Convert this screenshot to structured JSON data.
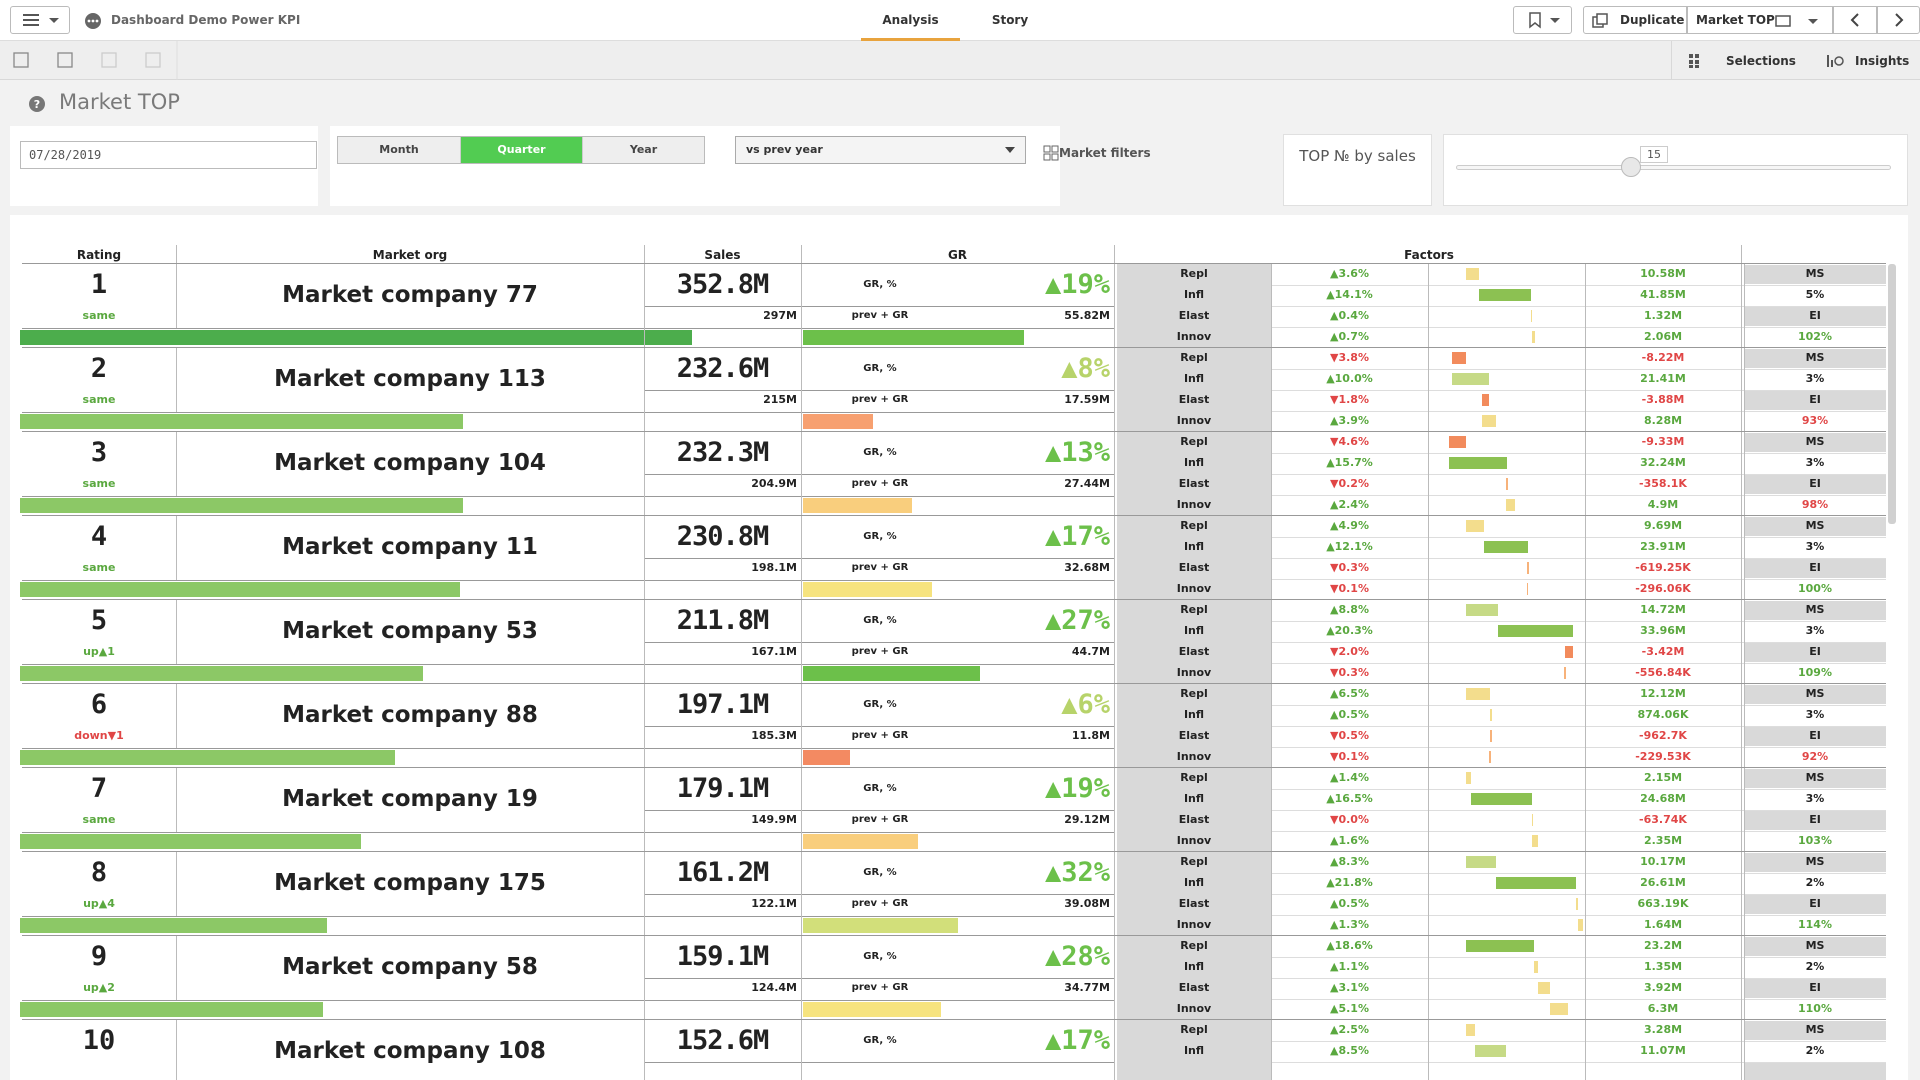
{
  "app": {
    "title": "Dashboard Demo Power KPI",
    "tabs": [
      "Analysis",
      "Story"
    ],
    "duplicate": "Duplicate",
    "sheet": "Market TOP"
  },
  "toolbar": {
    "selections": "Selections",
    "insights": "Insights"
  },
  "sheet": {
    "title": "Market TOP"
  },
  "filters": {
    "date": "07/28/2019",
    "periods": [
      "Month",
      "Quarter",
      "Year"
    ],
    "active_period": 1,
    "compare": "vs prev year",
    "market_filters": "Market filters",
    "top_label": "TOP № by sales",
    "top_value": "15"
  },
  "table": {
    "headers": {
      "rating": "Rating",
      "org": "Market org",
      "sales": "Sales",
      "gr": "GR",
      "factors": "Factors"
    },
    "gr_label": "GR, %",
    "prev_label": "prev + GR",
    "factor_names": [
      "Repl",
      "Infl",
      "Elast",
      "Innov"
    ],
    "ms_label": "MS",
    "ei_label": "EI",
    "rows": [
      {
        "rating": "1",
        "change": "same",
        "name": "Market company 77",
        "sales": "352.8M",
        "gr": "▲19%",
        "prev": "297M",
        "delta": "55.82M",
        "factors": [
          {
            "pct": "▲3.6%",
            "value": "10.58M"
          },
          {
            "pct": "▲14.1%",
            "value": "41.85M"
          },
          {
            "pct": "▲0.4%",
            "value": "1.32M"
          },
          {
            "pct": "▲0.7%",
            "value": "2.06M"
          }
        ],
        "ms": "5%",
        "ei": "102%"
      },
      {
        "rating": "2",
        "change": "same",
        "name": "Market company 113",
        "sales": "232.6M",
        "gr": "▲8%",
        "prev": "215M",
        "delta": "17.59M",
        "factors": [
          {
            "pct": "▼3.8%",
            "value": "-8.22M"
          },
          {
            "pct": "▲10.0%",
            "value": "21.41M"
          },
          {
            "pct": "▼1.8%",
            "value": "-3.88M"
          },
          {
            "pct": "▲3.9%",
            "value": "8.28M"
          }
        ],
        "ms": "3%",
        "ei": "93%"
      },
      {
        "rating": "3",
        "change": "same",
        "name": "Market company 104",
        "sales": "232.3M",
        "gr": "▲13%",
        "prev": "204.9M",
        "delta": "27.44M",
        "factors": [
          {
            "pct": "▼4.6%",
            "value": "-9.33M"
          },
          {
            "pct": "▲15.7%",
            "value": "32.24M"
          },
          {
            "pct": "▼0.2%",
            "value": "-358.1K"
          },
          {
            "pct": "▲2.4%",
            "value": "4.9M"
          }
        ],
        "ms": "3%",
        "ei": "98%"
      },
      {
        "rating": "4",
        "change": "same",
        "name": "Market company 11",
        "sales": "230.8M",
        "gr": "▲17%",
        "prev": "198.1M",
        "delta": "32.68M",
        "factors": [
          {
            "pct": "▲4.9%",
            "value": "9.69M"
          },
          {
            "pct": "▲12.1%",
            "value": "23.91M"
          },
          {
            "pct": "▼0.3%",
            "value": "-619.25K"
          },
          {
            "pct": "▼0.1%",
            "value": "-296.06K"
          }
        ],
        "ms": "3%",
        "ei": "100%"
      },
      {
        "rating": "5",
        "change": "up▲1",
        "name": "Market company 53",
        "sales": "211.8M",
        "gr": "▲27%",
        "prev": "167.1M",
        "delta": "44.7M",
        "factors": [
          {
            "pct": "▲8.8%",
            "value": "14.72M"
          },
          {
            "pct": "▲20.3%",
            "value": "33.96M"
          },
          {
            "pct": "▼2.0%",
            "value": "-3.42M"
          },
          {
            "pct": "▼0.3%",
            "value": "-556.84K"
          }
        ],
        "ms": "3%",
        "ei": "109%"
      },
      {
        "rating": "6",
        "change": "down▼1",
        "name": "Market company 88",
        "sales": "197.1M",
        "gr": "▲6%",
        "prev": "185.3M",
        "delta": "11.8M",
        "factors": [
          {
            "pct": "▲6.5%",
            "value": "12.12M"
          },
          {
            "pct": "▲0.5%",
            "value": "874.06K"
          },
          {
            "pct": "▼0.5%",
            "value": "-962.7K"
          },
          {
            "pct": "▼0.1%",
            "value": "-229.53K"
          }
        ],
        "ms": "3%",
        "ei": "92%"
      },
      {
        "rating": "7",
        "change": "same",
        "name": "Market company 19",
        "sales": "179.1M",
        "gr": "▲19%",
        "prev": "149.9M",
        "delta": "29.12M",
        "factors": [
          {
            "pct": "▲1.4%",
            "value": "2.15M"
          },
          {
            "pct": "▲16.5%",
            "value": "24.68M"
          },
          {
            "pct": "▼0.0%",
            "value": "-63.74K"
          },
          {
            "pct": "▲1.6%",
            "value": "2.35M"
          }
        ],
        "ms": "3%",
        "ei": "103%"
      },
      {
        "rating": "8",
        "change": "up▲4",
        "name": "Market company 175",
        "sales": "161.2M",
        "gr": "▲32%",
        "prev": "122.1M",
        "delta": "39.08M",
        "factors": [
          {
            "pct": "▲8.3%",
            "value": "10.17M"
          },
          {
            "pct": "▲21.8%",
            "value": "26.61M"
          },
          {
            "pct": "▲0.5%",
            "value": "663.19K"
          },
          {
            "pct": "▲1.3%",
            "value": "1.64M"
          }
        ],
        "ms": "2%",
        "ei": "114%"
      },
      {
        "rating": "9",
        "change": "up▲2",
        "name": "Market company 58",
        "sales": "159.1M",
        "gr": "▲28%",
        "prev": "124.4M",
        "delta": "34.77M",
        "factors": [
          {
            "pct": "▲18.6%",
            "value": "23.2M"
          },
          {
            "pct": "▲1.1%",
            "value": "1.35M"
          },
          {
            "pct": "▲3.1%",
            "value": "3.92M"
          },
          {
            "pct": "▲5.1%",
            "value": "6.3M"
          }
        ],
        "ms": "2%",
        "ei": "110%"
      },
      {
        "rating": "10",
        "name": "Market company 108",
        "sales": "152.6M",
        "gr": "▲17%",
        "factors": [
          {
            "pct": "▲2.5%",
            "value": "3.28M"
          },
          {
            "pct": "▲8.5%",
            "value": "11.07M"
          }
        ],
        "ms": "2%"
      }
    ]
  }
}
